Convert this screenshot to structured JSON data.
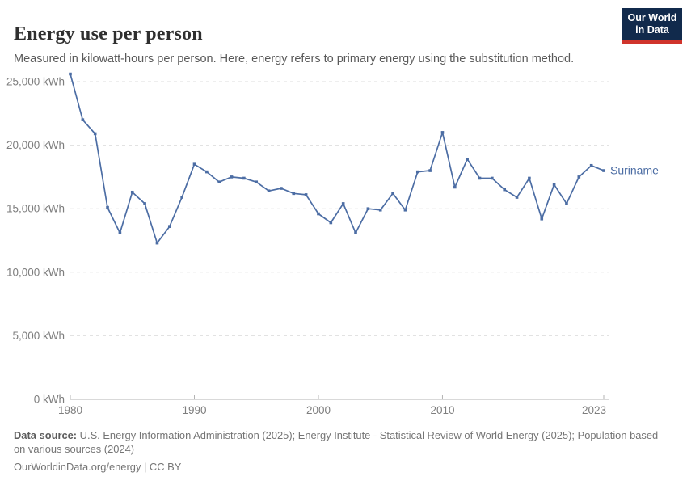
{
  "header": {
    "title": "Energy use per person",
    "subtitle": "Measured in kilowatt-hours per person. Here, energy refers to primary energy using the substitution method."
  },
  "logo": {
    "line1": "Our World",
    "line2": "in Data",
    "bg_color": "#112a4c",
    "bar_color": "#d0342c"
  },
  "chart_data": {
    "type": "line",
    "title": "Energy use per person",
    "unit": "kWh",
    "xlabel": "",
    "ylabel": "kWh per person",
    "xlim": [
      1980,
      2023
    ],
    "ylim": [
      0,
      25000
    ],
    "grid": "horizontal-dashed",
    "legend_position": "end-of-line-label",
    "end_label": "Suriname",
    "xticks": [
      1980,
      1990,
      2000,
      2010,
      2023
    ],
    "yticks": [
      {
        "value": 0,
        "label": "0 kWh"
      },
      {
        "value": 5000,
        "label": "5,000 kWh"
      },
      {
        "value": 10000,
        "label": "10,000 kWh"
      },
      {
        "value": 15000,
        "label": "15,000 kWh"
      },
      {
        "value": 20000,
        "label": "20,000 kWh"
      },
      {
        "value": 25000,
        "label": "25,000 kWh"
      }
    ],
    "series": [
      {
        "name": "Suriname",
        "color": "#4c6da4",
        "x": [
          1980,
          1981,
          1982,
          1983,
          1984,
          1985,
          1986,
          1987,
          1988,
          1989,
          1990,
          1991,
          1992,
          1993,
          1994,
          1995,
          1996,
          1997,
          1998,
          1999,
          2000,
          2001,
          2002,
          2003,
          2004,
          2005,
          2006,
          2007,
          2008,
          2009,
          2010,
          2011,
          2012,
          2013,
          2014,
          2015,
          2016,
          2017,
          2018,
          2019,
          2020,
          2021,
          2022,
          2023
        ],
        "values": [
          25600,
          22000,
          20900,
          15100,
          13100,
          16300,
          15400,
          12300,
          13600,
          15900,
          18500,
          17900,
          17100,
          17500,
          17400,
          17100,
          16400,
          16600,
          16200,
          16100,
          14600,
          13900,
          15400,
          13100,
          15000,
          14900,
          16200,
          14900,
          17900,
          18000,
          21000,
          16700,
          18900,
          17400,
          17400,
          16500,
          15900,
          17400,
          14200,
          16900,
          15400,
          17500,
          18400,
          18000
        ]
      }
    ],
    "axis_text_color": "#7e7e7e",
    "gridline_color": "#dedede",
    "axis_line_color": "#b3b3b3"
  },
  "footer": {
    "source_label": "Data source:",
    "source_text": " U.S. Energy Information Administration (2025); Energy Institute - Statistical Review of World Energy (2025); Population based on various sources (2024)",
    "license_line": "OurWorldinData.org/energy | CC BY"
  }
}
